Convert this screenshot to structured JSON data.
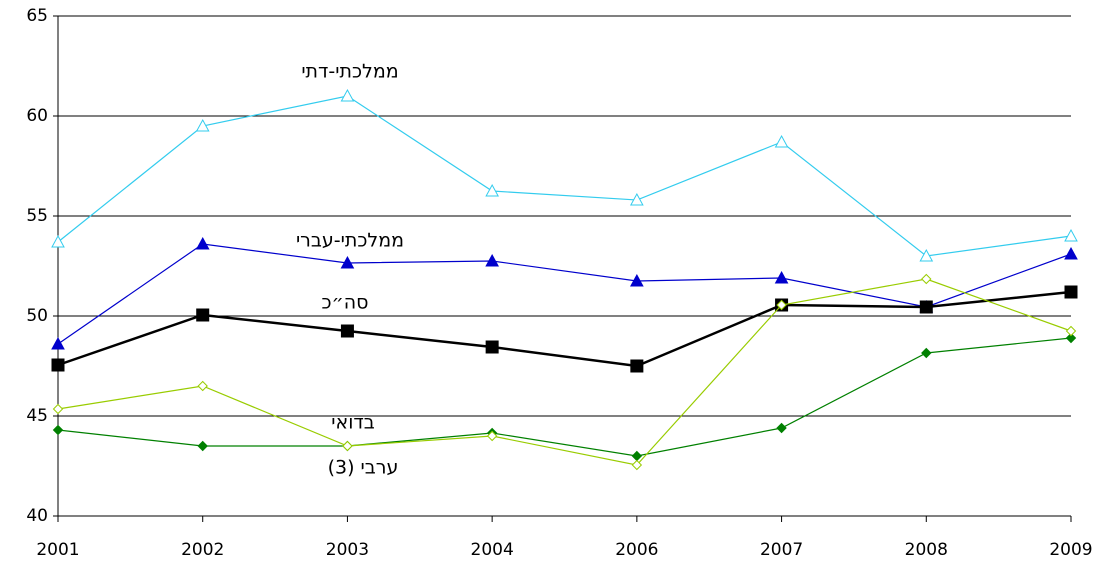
{
  "chart_data": {
    "type": "line",
    "categories": [
      "2001",
      "2002",
      "2003",
      "2004",
      "2006",
      "2007",
      "2008",
      "2009"
    ],
    "ylim": [
      40,
      65
    ],
    "yticks": [
      40,
      45,
      50,
      55,
      60,
      65
    ],
    "grid": true,
    "series": [
      {
        "name": "ממלכתי-דתי",
        "color": "#33ccee",
        "marker": "triangle-open",
        "values": [
          53.7,
          59.5,
          61,
          56.25,
          55.8,
          58.7,
          53,
          54
        ]
      },
      {
        "name": "ממלכתי-עברי",
        "color": "#0000cc",
        "marker": "triangle",
        "values": [
          48.6,
          53.6,
          52.65,
          52.75,
          51.75,
          51.9,
          50.45,
          53.1
        ]
      },
      {
        "name": "סה״כ",
        "color": "#000000",
        "marker": "square",
        "values": [
          47.55,
          50.05,
          49.25,
          48.45,
          47.5,
          50.55,
          50.45,
          51.2
        ]
      },
      {
        "name": "בדואי",
        "color": "#008000",
        "marker": "diamond",
        "values": [
          44.3,
          43.5,
          43.5,
          44.15,
          43,
          44.4,
          48.15,
          48.9
        ]
      },
      {
        "name": "ערבי (3)",
        "color": "#99cc00",
        "marker": "diamond-open",
        "values": [
          45.35,
          46.5,
          43.5,
          44,
          42.55,
          50.55,
          51.85,
          49.25
        ]
      }
    ]
  }
}
